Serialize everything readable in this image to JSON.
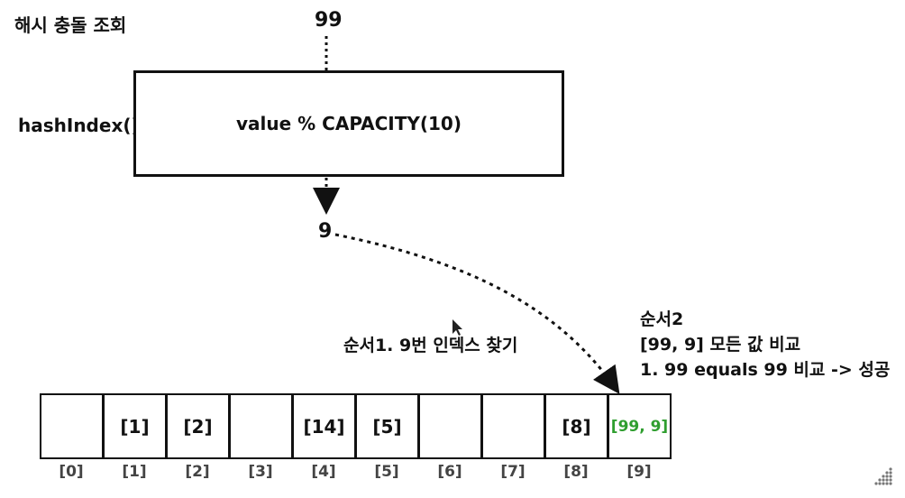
{
  "title": "해시 충돌 조회",
  "input_value": "99",
  "function_label": "hashIndex()",
  "formula": "value % CAPACITY(10)",
  "result_index": "9",
  "step1_label": "순서1. 9번 인덱스 찾기",
  "step2": {
    "heading": "순서2",
    "line1": "[99, 9] 모든 값 비교",
    "line2": "1. 99 equals 99 비교 -> 성공"
  },
  "buckets": [
    "",
    "[1]",
    "[2]",
    "",
    "[14]",
    "[5]",
    "",
    "",
    "[8]",
    "[99, 9]"
  ],
  "indices": [
    "[0]",
    "[1]",
    "[2]",
    "[3]",
    "[4]",
    "[5]",
    "[6]",
    "[7]",
    "[8]",
    "[9]"
  ],
  "colors": {
    "found": "#2f9e2f",
    "stroke": "#111111"
  }
}
